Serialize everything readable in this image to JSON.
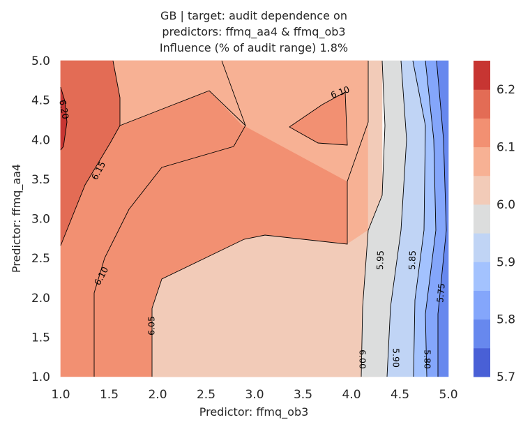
{
  "chart_data": {
    "type": "contour",
    "title_lines": [
      "GB | target: audit dependence on",
      "predictors: ffmq_aa4 & ffmq_ob3",
      "Influence (% of audit range) 1.8%"
    ],
    "xlabel": "Predictor: ffmq_ob3",
    "ylabel": "Predictor: ffmq_aa4",
    "xlim": [
      1.0,
      5.0
    ],
    "ylim": [
      1.0,
      5.0
    ],
    "x_ticks": [
      "1.0",
      "1.5",
      "2.0",
      "2.5",
      "3.0",
      "3.5",
      "4.0",
      "4.5",
      "5.0"
    ],
    "y_ticks": [
      "1.0",
      "1.5",
      "2.0",
      "2.5",
      "3.0",
      "3.5",
      "4.0",
      "4.5",
      "5.0"
    ],
    "colormap": "coolwarm",
    "colorbar": {
      "levels": [
        5.7,
        5.75,
        5.8,
        5.85,
        5.9,
        5.95,
        6.0,
        6.05,
        6.1,
        6.15,
        6.2,
        6.25
      ],
      "tick_labels": [
        "5.7",
        "5.8",
        "5.9",
        "6.0",
        "6.1",
        "6.2"
      ],
      "band_colors": [
        "#4960d6",
        "#6788ee",
        "#84a6fb",
        "#a3c2fe",
        "#c0d4f5",
        "#dcdddd",
        "#f2cbb8",
        "#f7b194",
        "#f29072",
        "#e36c55",
        "#c73532"
      ]
    },
    "contour_labels": [
      "6.20",
      "6.15",
      "6.10",
      "6.10",
      "6.05",
      "6.00",
      "5.95",
      "5.90",
      "5.85",
      "5.80",
      "5.75"
    ],
    "grid": false
  }
}
